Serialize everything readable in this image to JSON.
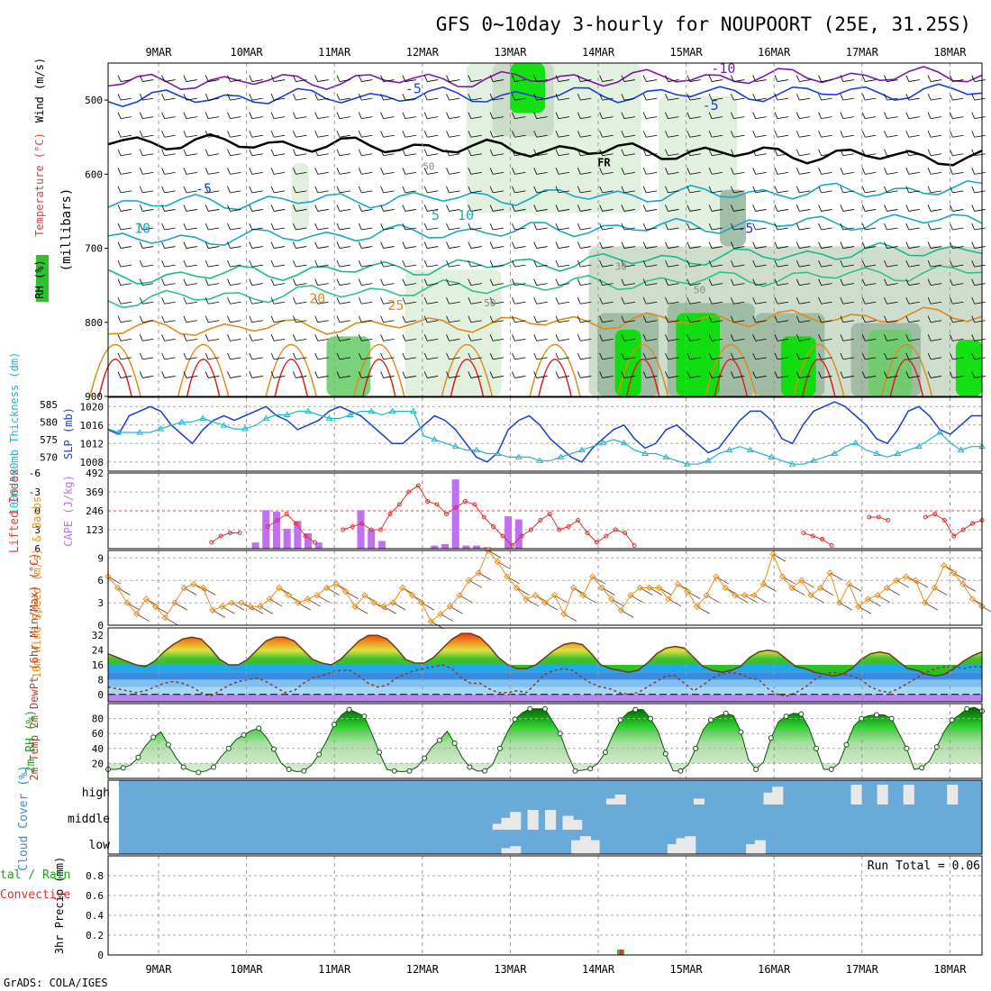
{
  "title": "GFS 0~10day 3-hourly for NOUPOORT (25E, 31.25S)",
  "credit": "GrADS: COLA/IGES",
  "dates": [
    "9MAR",
    "10MAR",
    "11MAR",
    "12MAR",
    "13MAR",
    "14MAR",
    "15MAR",
    "16MAR",
    "17MAR",
    "18MAR"
  ],
  "colors": {
    "rh_green": "#00e000",
    "temp_blue": "#1a3fd0",
    "temp_cyan": "#18a7c8",
    "temp_orange": "#e08a1a",
    "temp_red": "#e01a1a",
    "slp": "#1a3fd0",
    "thickness": "#20b8c8",
    "li": "#e03030",
    "cape": "#c070f0",
    "wind": "#e8901c",
    "cloud_bg": "#6aaad8",
    "precip_conv": "#e03030"
  },
  "chart_data": [
    {
      "type": "heatmap",
      "name": "upper_air",
      "ylabels": [
        "RH (%)",
        "Temperature (°C)",
        "Wind (m/s)",
        "(millibars)"
      ],
      "yticks": [
        500,
        600,
        700,
        800,
        900
      ],
      "ylim": [
        900,
        450
      ],
      "temp_contour_labels": [
        "-10",
        "-5",
        "-5",
        "FR",
        "-5",
        "5",
        "10",
        "-5",
        "10",
        "20",
        "25"
      ],
      "rh_contour_labels": [
        "50",
        "30",
        "50",
        "50"
      ]
    },
    {
      "type": "line",
      "name": "slp_thickness",
      "ylabel_left": "1000-500mb Thickness (dm)",
      "ylabel_right": "SLP (mb)",
      "left_ticks": [
        570,
        575,
        580,
        585
      ],
      "right_ticks": [
        1008,
        1012,
        1016,
        1020
      ],
      "series": [
        {
          "name": "SLP (mb)",
          "values": [
            1015,
            1014,
            1018,
            1019,
            1020,
            1019,
            1016,
            1014,
            1012,
            1015,
            1017,
            1018,
            1017,
            1018,
            1019,
            1020,
            1018,
            1017,
            1015,
            1016,
            1017,
            1019,
            1020,
            1019,
            1018,
            1016,
            1014,
            1012,
            1012,
            1014,
            1016,
            1018,
            1017,
            1015,
            1012,
            1009,
            1008,
            1010,
            1015,
            1017,
            1018,
            1016,
            1013,
            1011,
            1009,
            1008,
            1011,
            1013,
            1015,
            1016,
            1013,
            1011,
            1012,
            1015,
            1016,
            1014,
            1012,
            1010,
            1011,
            1014,
            1017,
            1019,
            1019,
            1017,
            1013,
            1012,
            1016,
            1019,
            1020,
            1021,
            1020,
            1018,
            1016,
            1013,
            1012,
            1015,
            1019,
            1020,
            1018,
            1015,
            1014,
            1016,
            1018,
            1018
          ]
        },
        {
          "name": "1000-500mb Thickness (dm)",
          "values": [
            578,
            577,
            577,
            577,
            577,
            578,
            579,
            580,
            580,
            581,
            580,
            579,
            578,
            578,
            579,
            581,
            582,
            582,
            583,
            583,
            582,
            581,
            581,
            582,
            583,
            583,
            582,
            583,
            583,
            583,
            576,
            575,
            574,
            573,
            572,
            572,
            571,
            571,
            570,
            570,
            570,
            569,
            569,
            570,
            571,
            572,
            573,
            574,
            575,
            574,
            572,
            571,
            571,
            570,
            569,
            568,
            568,
            569,
            571,
            572,
            573,
            572,
            571,
            570,
            569,
            568,
            568,
            569,
            570,
            571,
            573,
            574,
            572,
            571,
            570,
            571,
            572,
            573,
            575,
            577,
            574,
            572,
            573,
            573
          ]
        }
      ]
    },
    {
      "type": "bar",
      "name": "stability",
      "ylabel_left": "Lifted Index",
      "ylabel_right": "CAPE (J/kg)",
      "left_ticks": [
        -6,
        -3,
        0,
        3,
        6
      ],
      "right_ticks": [
        123,
        246,
        369,
        492
      ],
      "ylim_right": [
        0,
        492
      ],
      "series": [
        {
          "name": "CAPE (J/kg)",
          "values": [
            0,
            0,
            0,
            0,
            0,
            0,
            0,
            0,
            0,
            0,
            0,
            0,
            0,
            0,
            40,
            250,
            240,
            130,
            180,
            100,
            40,
            0,
            0,
            0,
            250,
            120,
            50,
            0,
            0,
            0,
            0,
            20,
            30,
            450,
            20,
            20,
            10,
            0,
            210,
            190,
            0,
            0,
            0,
            0,
            0,
            0,
            0,
            0,
            0,
            0,
            0,
            0,
            0,
            0,
            0,
            0,
            0,
            0,
            0,
            0,
            0,
            0,
            0,
            0,
            0,
            0,
            0,
            0,
            0,
            0,
            0,
            0,
            0,
            0,
            0,
            0,
            0,
            0,
            0,
            0,
            0,
            0,
            0,
            0
          ]
        },
        {
          "name": "Lifted Index",
          "values": [
            null,
            null,
            null,
            null,
            null,
            null,
            null,
            null,
            null,
            null,
            null,
            5,
            4,
            3.5,
            3.5,
            null,
            null,
            2.5,
            1.5,
            0.5,
            2,
            4,
            5,
            null,
            null,
            3,
            2.5,
            2,
            3,
            3,
            0.5,
            -1,
            -3,
            -4,
            -1.5,
            -1,
            0.5,
            -0.5,
            -1.5,
            -1,
            1,
            2.5,
            4,
            5.5,
            4,
            3,
            1.5,
            0.5,
            3,
            2.5,
            1.5,
            3.5,
            5,
            4,
            3,
            3.5,
            5.5,
            null,
            null,
            null,
            null,
            null,
            null,
            null,
            null,
            null,
            null,
            null,
            null,
            null,
            null,
            null,
            null,
            null,
            3.5,
            4,
            4.5,
            5.5,
            null,
            null,
            null,
            1,
            1,
            1.5,
            null,
            null,
            null,
            1,
            0.5,
            1.5,
            4,
            3,
            2,
            1.5
          ]
        }
      ]
    },
    {
      "type": "line",
      "name": "wind10m",
      "ylabel": "10m Wind Speed (m/s) & Barbs",
      "yticks": [
        0,
        3,
        6,
        9
      ],
      "ylim": [
        0,
        10
      ],
      "series": [
        {
          "name": "10m Wind Speed",
          "values": [
            6.5,
            5,
            3,
            1.5,
            3.5,
            2.5,
            1,
            3,
            5,
            5.5,
            5,
            2,
            2.5,
            3,
            3,
            2.5,
            2.5,
            3.5,
            5,
            4,
            3,
            3.5,
            4,
            5,
            5.5,
            4.5,
            2.5,
            4,
            3,
            2.5,
            3,
            5,
            4,
            3,
            0.5,
            1.5,
            2.5,
            4,
            6,
            7,
            10,
            8.5,
            6.5,
            5,
            3.5,
            4,
            3,
            4,
            1.5,
            5,
            4,
            6.5,
            5,
            3.5,
            2,
            4,
            5,
            5,
            5,
            3.5,
            5.5,
            4.5,
            2.5,
            4,
            6.5,
            5,
            4,
            4,
            4,
            5.5,
            9.5,
            6.5,
            5,
            6,
            4,
            5,
            7,
            3,
            5.5,
            2.5,
            3.5,
            4,
            5,
            6,
            6.5,
            6,
            3,
            5,
            8,
            7,
            5.5,
            3.5,
            2.5
          ]
        }
      ]
    },
    {
      "type": "area",
      "name": "temp2m",
      "ylabel": "2m Temp 2m DewPt (6hr Min/Max) (°C)",
      "yticks": [
        0,
        8,
        16,
        24,
        32
      ],
      "ylim": [
        -4,
        36
      ],
      "series": [
        {
          "name": "2m Temp",
          "values": [
            22,
            20,
            18,
            16,
            15,
            18,
            23,
            27,
            30,
            31,
            30,
            25,
            19,
            16,
            16,
            19,
            24,
            29,
            31,
            31,
            29,
            24,
            19,
            17,
            16,
            19,
            24,
            29,
            32,
            32,
            30,
            25,
            19,
            17,
            17,
            20,
            25,
            30,
            33,
            33,
            31,
            26,
            20,
            16,
            14,
            14,
            16,
            20,
            24,
            27,
            28,
            27,
            22,
            16,
            14,
            13,
            12,
            13,
            17,
            22,
            25,
            26,
            25,
            20,
            15,
            13,
            12,
            13,
            15,
            20,
            23,
            24,
            23,
            19,
            15,
            14,
            12,
            11,
            10,
            11,
            14,
            19,
            22,
            23,
            22,
            18,
            14,
            13,
            11,
            10,
            11,
            14,
            18,
            21,
            23
          ]
        },
        {
          "name": "2m DewPt",
          "values": [
            4,
            3,
            2,
            1,
            2,
            4,
            6,
            7,
            6,
            4,
            1,
            -1,
            2,
            5,
            7,
            8,
            9,
            7,
            4,
            1,
            2,
            6,
            9,
            10,
            12,
            13,
            13,
            10,
            6,
            4,
            5,
            9,
            11,
            13,
            14,
            15,
            16,
            14,
            9,
            6,
            6,
            3,
            1,
            1,
            2,
            1,
            6,
            11,
            13,
            14,
            13,
            9,
            6,
            4,
            3,
            1,
            0,
            1,
            4,
            7,
            10,
            10,
            6,
            2,
            5,
            9,
            11,
            12,
            11,
            9,
            8,
            3,
            0,
            -1,
            1,
            4,
            8,
            11,
            12,
            11,
            10,
            8,
            4,
            2,
            1,
            3,
            6,
            9,
            12,
            14,
            15,
            15,
            14,
            15,
            15
          ]
        }
      ]
    },
    {
      "type": "area",
      "name": "rh2m",
      "ylabel": "2m RH (%)",
      "yticks": [
        20,
        40,
        60,
        80
      ],
      "ylim": [
        0,
        100
      ],
      "series": [
        {
          "name": "2m RH",
          "values": [
            12,
            12,
            14,
            18,
            28,
            44,
            55,
            62,
            45,
            28,
            15,
            10,
            8,
            10,
            15,
            29,
            40,
            52,
            58,
            64,
            67,
            55,
            39,
            20,
            12,
            9,
            10,
            18,
            32,
            50,
            72,
            85,
            92,
            88,
            83,
            60,
            35,
            12,
            10,
            9,
            10,
            15,
            27,
            42,
            51,
            63,
            47,
            28,
            15,
            10,
            10,
            18,
            40,
            62,
            79,
            88,
            93,
            93,
            93,
            76,
            60,
            32,
            10,
            11,
            13,
            20,
            35,
            58,
            78,
            88,
            92,
            92,
            80,
            63,
            33,
            10,
            10,
            18,
            40,
            65,
            78,
            83,
            87,
            84,
            62,
            25,
            12,
            22,
            54,
            76,
            83,
            87,
            86,
            68,
            40,
            12,
            12,
            20,
            45,
            70,
            80,
            84,
            85,
            85,
            80,
            60,
            40,
            12,
            14,
            23,
            42,
            63,
            78,
            85,
            93,
            95,
            90
          ]
        }
      ]
    },
    {
      "type": "bar",
      "name": "cloud_cover",
      "ylabel": "Cloud Cover (%)",
      "levels": [
        "high",
        "middle",
        "low"
      ]
    },
    {
      "type": "bar",
      "name": "precip",
      "ylabel": "3hr Precip (mm)",
      "left_label_lines": [
        "tal / Rain",
        "Convective"
      ],
      "yticks": [
        0,
        0.2,
        0.4,
        0.6,
        0.8
      ],
      "ylim": [
        0,
        1
      ],
      "run_total": "Run Total = 0.06"
    }
  ]
}
